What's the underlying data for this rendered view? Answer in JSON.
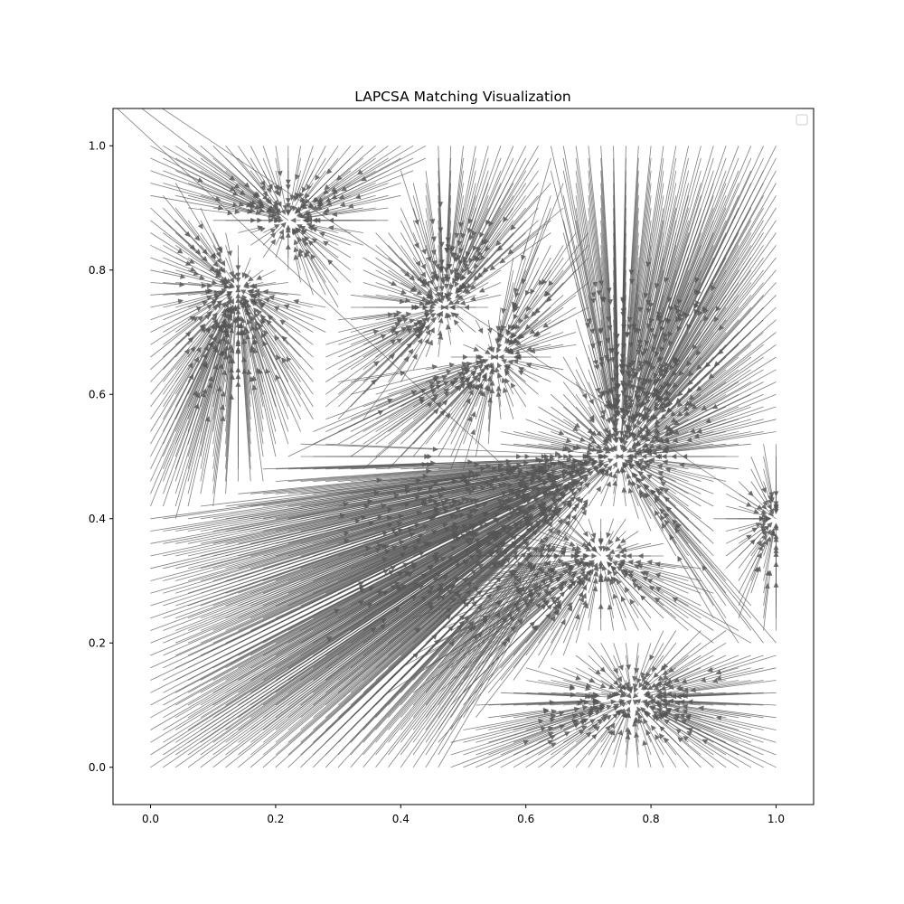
{
  "chart_data": {
    "type": "quiver",
    "title": "LAPCSA Matching Visualization",
    "xlabel": "",
    "ylabel": "",
    "xlim": [
      -0.06,
      1.06
    ],
    "ylim": [
      -0.06,
      1.06
    ],
    "xticks": [
      0.0,
      0.2,
      0.4,
      0.6,
      0.8,
      1.0
    ],
    "xtick_labels": [
      "0.0",
      "0.2",
      "0.4",
      "0.6",
      "0.8",
      "1.0"
    ],
    "yticks": [
      0.0,
      0.2,
      0.4,
      0.6,
      0.8,
      1.0
    ],
    "ytick_labels": [
      "0.0",
      "0.2",
      "0.4",
      "0.6",
      "0.8",
      "1.0"
    ],
    "grid": false,
    "legend": {
      "placement": "upper right",
      "entries": []
    },
    "arrow_color": "#555555",
    "grid_points": {
      "x_start": 0.0,
      "x_end": 1.0,
      "y_start": 0.0,
      "y_end": 1.0,
      "n": 51
    },
    "sinks": [
      {
        "x": 0.75,
        "y": 0.5,
        "weight": 1.0
      },
      {
        "x": 0.72,
        "y": 0.34,
        "weight": 0.55
      },
      {
        "x": 0.55,
        "y": 0.66,
        "weight": 0.45
      },
      {
        "x": 0.47,
        "y": 0.74,
        "weight": 0.35
      },
      {
        "x": 0.22,
        "y": 0.88,
        "weight": 0.3
      },
      {
        "x": 0.14,
        "y": 0.77,
        "weight": 0.25
      },
      {
        "x": 0.77,
        "y": 0.11,
        "weight": 0.3
      },
      {
        "x": 1.0,
        "y": 0.4,
        "weight": 0.2
      }
    ]
  }
}
